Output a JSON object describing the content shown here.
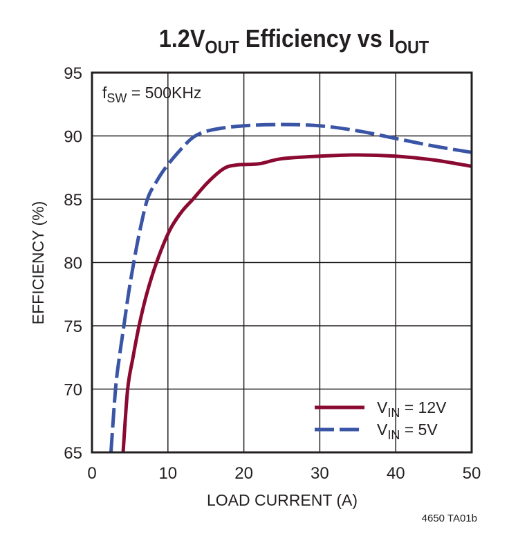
{
  "chart_data": {
    "type": "line",
    "title": {
      "main": "1.2V",
      "sub1": "OUT",
      "mid": " Efficiency vs I",
      "sub2": "OUT"
    },
    "xlabel": "LOAD CURRENT (A)",
    "ylabel": "EFFICIENCY (%)",
    "xlim": [
      0,
      50
    ],
    "ylim": [
      65,
      95
    ],
    "xticks": [
      0,
      10,
      20,
      30,
      40,
      50
    ],
    "yticks": [
      65,
      70,
      75,
      80,
      85,
      90,
      95
    ],
    "grid": true,
    "annotation": {
      "main": "f",
      "sub": "SW",
      "rest": " = 500KHz"
    },
    "footnote": "4650 TA01b",
    "legend_placement": "bottom-right",
    "series": [
      {
        "name": {
          "main": "V",
          "sub": "IN",
          "rest": " = 12V"
        },
        "color": "#8b0a32",
        "style": "solid",
        "x": [
          4.1,
          4.7,
          5.4,
          6.2,
          7.2,
          8.5,
          10.2,
          11.8,
          13.3,
          15.2,
          17.3,
          19,
          22,
          25,
          30,
          35,
          40,
          45,
          50
        ],
        "y": [
          65,
          70,
          72.5,
          75,
          77.5,
          80,
          82.5,
          84,
          85,
          86.3,
          87.4,
          87.7,
          87.8,
          88.2,
          88.4,
          88.5,
          88.4,
          88.1,
          87.6
        ]
      },
      {
        "name": {
          "main": "V",
          "sub": "IN",
          "rest": " = 5V"
        },
        "color": "#3b55a6",
        "style": "dashed",
        "x": [
          2.5,
          3.1,
          3.6,
          4.2,
          4.8,
          5.5,
          6.3,
          7.3,
          8.4,
          9.7,
          11.8,
          13.6,
          16,
          20,
          25,
          30,
          35,
          40,
          45,
          50
        ],
        "y": [
          65,
          70,
          72.5,
          75,
          77.5,
          80,
          82.5,
          85,
          86.3,
          87.5,
          89,
          90,
          90.5,
          90.8,
          90.9,
          90.8,
          90.4,
          89.8,
          89.2,
          88.7
        ]
      }
    ]
  }
}
